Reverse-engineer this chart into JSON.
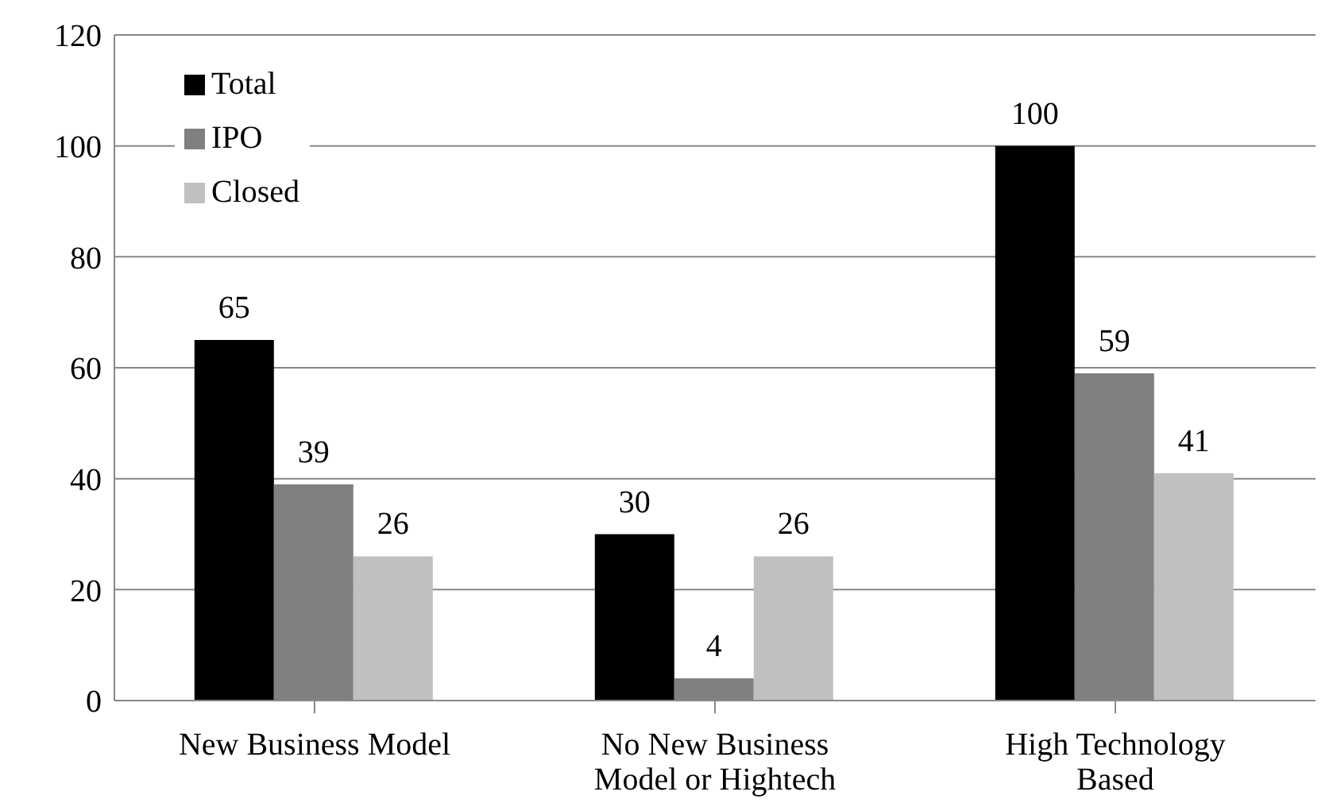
{
  "chart_data": {
    "type": "bar",
    "categories": [
      "New Business Model",
      "No New Business Model or Hightech",
      "High Technology Based"
    ],
    "series": [
      {
        "name": "Total",
        "color": "#000000",
        "values": [
          65,
          30,
          100
        ]
      },
      {
        "name": "IPO",
        "color": "#808080",
        "values": [
          39,
          4,
          59
        ]
      },
      {
        "name": "Closed",
        "color": "#c0c0c0",
        "values": [
          26,
          26,
          41
        ]
      }
    ],
    "ylim": [
      0,
      120
    ],
    "yticks": [
      0,
      20,
      40,
      60,
      80,
      100,
      120
    ],
    "grid": "y",
    "legend": "top left",
    "data_labels": true
  }
}
